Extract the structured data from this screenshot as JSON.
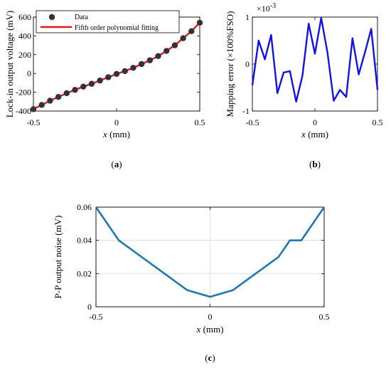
{
  "chart_data": [
    {
      "panel": "a",
      "type": "scatter",
      "caption": {
        "open": "(",
        "letter": "a",
        "close": ")"
      },
      "xlabel_var": "x",
      "xlabel_unit": "(mm)",
      "ylabel": "Lock-in output voltage  (mV)",
      "xlim": [
        -0.5,
        0.5
      ],
      "ylim": [
        -400,
        600
      ],
      "xticks": [
        -0.5,
        0,
        0.5
      ],
      "xtick_labels": [
        "-0.5",
        "0",
        "0.5"
      ],
      "yticks": [
        -400,
        -200,
        0,
        200,
        400,
        600
      ],
      "ytick_labels": [
        "-400",
        "-200",
        "0",
        "200",
        "400",
        "600"
      ],
      "legend": {
        "position": "top-left",
        "entries": [
          "Data",
          "Fifth order polynomial fitting"
        ]
      },
      "colors": {
        "data": "#333333",
        "fit": "#e8151b"
      },
      "series": [
        {
          "name": "Data",
          "x": [
            -0.5,
            -0.45,
            -0.4,
            -0.35,
            -0.3,
            -0.25,
            -0.2,
            -0.15,
            -0.1,
            -0.05,
            0,
            0.05,
            0.1,
            0.15,
            0.2,
            0.25,
            0.3,
            0.35,
            0.4,
            0.45,
            0.5
          ],
          "y": [
            -380,
            -335,
            -290,
            -250,
            -210,
            -175,
            -140,
            -110,
            -75,
            -40,
            -5,
            25,
            60,
            100,
            140,
            185,
            240,
            300,
            375,
            450,
            540
          ]
        },
        {
          "name": "Fifth order polynomial fitting",
          "x": [
            -0.5,
            -0.45,
            -0.4,
            -0.35,
            -0.3,
            -0.25,
            -0.2,
            -0.15,
            -0.1,
            -0.05,
            0,
            0.05,
            0.1,
            0.15,
            0.2,
            0.25,
            0.3,
            0.35,
            0.4,
            0.45,
            0.5
          ],
          "y": [
            -380,
            -335,
            -290,
            -250,
            -210,
            -175,
            -140,
            -110,
            -75,
            -40,
            -5,
            25,
            60,
            100,
            140,
            185,
            240,
            300,
            375,
            450,
            540
          ]
        }
      ]
    },
    {
      "panel": "b",
      "type": "line",
      "caption": {
        "open": "(",
        "letter": "b",
        "close": ")"
      },
      "xlabel_var": "x",
      "xlabel_unit": "(mm)",
      "ylabel": "Mapping error  (×100%FSO)",
      "multiplier": "×10",
      "multiplier_exp": "-3",
      "xlim": [
        -0.5,
        0.5
      ],
      "ylim": [
        -1,
        1
      ],
      "xticks": [
        -0.5,
        0,
        0.5
      ],
      "xtick_labels": [
        "-0.5",
        "0",
        "0.5"
      ],
      "yticks": [
        -1,
        0,
        1
      ],
      "ytick_labels": [
        "-1",
        "0",
        "1"
      ],
      "colors": {
        "line": "#1111ee"
      },
      "x": [
        -0.5,
        -0.45,
        -0.4,
        -0.35,
        -0.3,
        -0.25,
        -0.2,
        -0.15,
        -0.1,
        -0.05,
        0,
        0.05,
        0.1,
        0.15,
        0.2,
        0.25,
        0.3,
        0.35,
        0.4,
        0.45,
        0.5
      ],
      "y": [
        -0.45,
        0.5,
        0.1,
        0.62,
        -0.62,
        -0.18,
        -0.15,
        -0.8,
        -0.25,
        0.86,
        0.22,
        0.98,
        0.25,
        -0.78,
        -0.55,
        -0.7,
        0.55,
        -0.22,
        0.25,
        0.75,
        -0.55
      ]
    },
    {
      "panel": "c",
      "type": "line",
      "caption": {
        "open": "(",
        "letter": "c",
        "close": ")"
      },
      "xlabel_var": "x",
      "xlabel_unit": "(mm)",
      "ylabel": "P-P output noise (mV)",
      "xlim": [
        -0.5,
        0.5
      ],
      "ylim": [
        0,
        0.06
      ],
      "xticks": [
        -0.5,
        0,
        0.5
      ],
      "xtick_labels": [
        "-0.5",
        "0",
        "0.5"
      ],
      "yticks": [
        0,
        0.02,
        0.04,
        0.06
      ],
      "ytick_labels": [
        "0",
        "0.02",
        "0.04",
        "0.06"
      ],
      "grid": true,
      "colors": {
        "line": "#1f77b4",
        "grid": "#d9d9d9"
      },
      "x": [
        -0.5,
        -0.4,
        -0.3,
        -0.2,
        -0.1,
        0,
        0.1,
        0.2,
        0.3,
        0.35,
        0.4,
        0.5
      ],
      "y": [
        0.06,
        0.04,
        0.03,
        0.02,
        0.01,
        0.006,
        0.01,
        0.02,
        0.03,
        0.04,
        0.04,
        0.06
      ]
    }
  ]
}
